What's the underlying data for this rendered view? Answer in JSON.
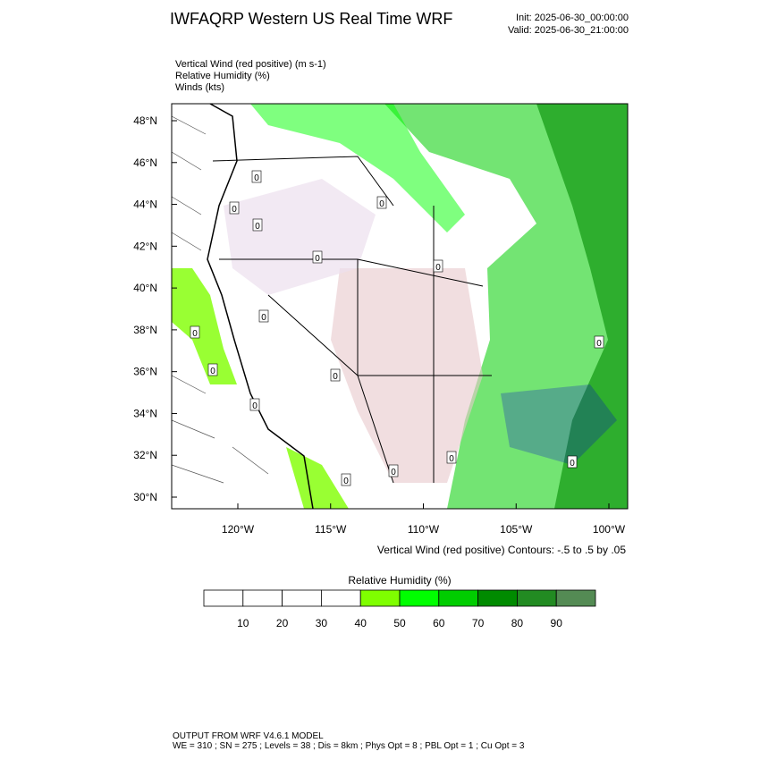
{
  "header": {
    "title": "IWFAQRP Western US Real Time WRF",
    "init": "Init: 2025-06-30_00:00:00",
    "valid": "Valid: 2025-06-30_21:00:00"
  },
  "fields": [
    "Vertical Wind (red positive)   (m s-1)",
    "Relative Humidity   (%)",
    "Winds   (kts)"
  ],
  "map": {
    "lat_ticks": [
      {
        "value": 48,
        "label": "48°N"
      },
      {
        "value": 46,
        "label": "46°N"
      },
      {
        "value": 44,
        "label": "44°N"
      },
      {
        "value": 42,
        "label": "42°N"
      },
      {
        "value": 40,
        "label": "40°N"
      },
      {
        "value": 38,
        "label": "38°N"
      },
      {
        "value": 36,
        "label": "36°N"
      },
      {
        "value": 34,
        "label": "34°N"
      },
      {
        "value": 32,
        "label": "32°N"
      },
      {
        "value": 30,
        "label": "30°N"
      }
    ],
    "lon_ticks": [
      {
        "value": -120,
        "label": "120°W"
      },
      {
        "value": -115,
        "label": "115°W"
      },
      {
        "value": -110,
        "label": "110°W"
      },
      {
        "value": -105,
        "label": "105°W"
      },
      {
        "value": -100,
        "label": "100°W"
      }
    ],
    "contour_label": "0",
    "contour_note": "Vertical Wind (red positive) Contours: -.5 to .5 by .05"
  },
  "colorbar": {
    "title": "Relative Humidity  (%)",
    "labels": [
      10,
      20,
      30,
      40,
      50,
      60,
      70,
      80,
      90
    ],
    "colors": [
      "#ffffff",
      "#ffffff",
      "#ffffff",
      "#ffffff",
      "#7fff00",
      "#00ff00",
      "#00cd00",
      "#008b00",
      "#228b22",
      "#548b54"
    ]
  },
  "footer": [
    "OUTPUT FROM WRF V4.6.1 MODEL",
    "WE = 310 ; SN = 275 ; Levels = 38 ; Dis = 8km ; Phys Opt = 8 ; PBL Opt = 1 ; Cu Opt = 3"
  ]
}
